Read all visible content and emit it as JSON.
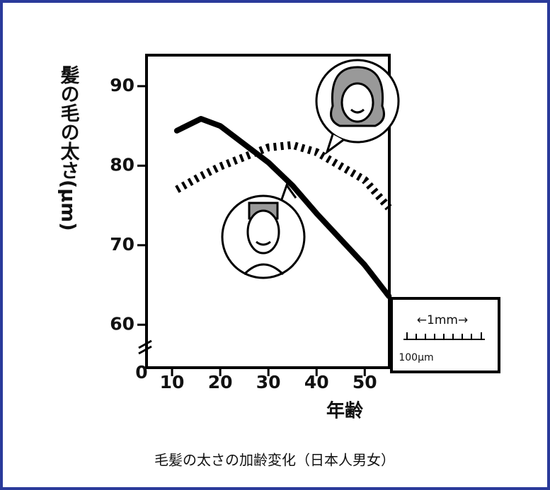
{
  "chart_data": {
    "type": "line",
    "y_label": "髪の毛の太さ(μm)",
    "x_label": "年齢",
    "caption": "毛髪の太さの加齢変化（日本人男女）",
    "origin_label": "0",
    "inset": {
      "scale_label": "←1mm→",
      "unit_label": "100μm"
    },
    "x": [
      11,
      16,
      20,
      30,
      35,
      40,
      50,
      55
    ],
    "series": [
      {
        "color": "#000000",
        "style": "solid",
        "values": [
          84.4,
          85.9,
          85.0,
          80.4,
          77.5,
          74.0,
          67.5,
          63.6
        ]
      },
      {
        "color": "#000000",
        "style": "dotted",
        "values": [
          77.0,
          78.7,
          79.9,
          82.3,
          82.6,
          81.7,
          78.2,
          74.7
        ]
      }
    ],
    "xlim": [
      4.7,
      55.1
    ],
    "xticks": [
      10,
      20,
      30,
      40,
      50
    ],
    "ylim": [
      54.6,
      93.9
    ],
    "yticks": [
      60,
      70,
      80,
      90
    ],
    "grid": false
  }
}
